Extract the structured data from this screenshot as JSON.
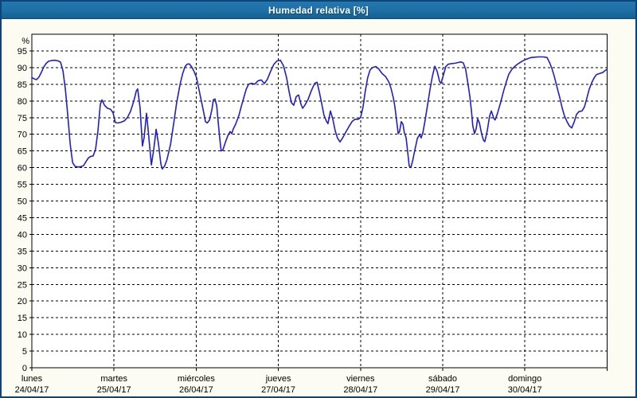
{
  "window": {
    "title": "Humedad relativa [%]"
  },
  "colors": {
    "titlebar_bg": "#1d6fa5",
    "titlebar_text": "#ffffff",
    "outer_border": "#0d4577",
    "window_bg": "#fcfcf2",
    "plot_bg": "#ffffff",
    "grid": "#000000",
    "axis": "#000000",
    "label_text": "#000000",
    "line": "#2020c8"
  },
  "chart_data": {
    "type": "line",
    "title": "Humedad relativa [%]",
    "xlabel": "",
    "ylabel": "",
    "y_unit_label": "%",
    "ylim": [
      0,
      100
    ],
    "y_ticks": [
      0,
      5,
      10,
      15,
      20,
      25,
      30,
      35,
      40,
      45,
      50,
      55,
      60,
      65,
      70,
      75,
      80,
      85,
      90,
      95
    ],
    "grid": "dashed",
    "legend_position": "none",
    "hours_per_day": 24,
    "x_range_hours": [
      0,
      168
    ],
    "x_days": [
      {
        "name": "lunes",
        "date": "24/04/17"
      },
      {
        "name": "martes",
        "date": "25/04/17"
      },
      {
        "name": "miércoles",
        "date": "26/04/17"
      },
      {
        "name": "jueves",
        "date": "27/04/17"
      },
      {
        "name": "viernes",
        "date": "28/04/17"
      },
      {
        "name": "sábado",
        "date": "29/04/17"
      },
      {
        "name": "domingo",
        "date": "30/04/17"
      }
    ],
    "series": [
      {
        "name": "Humedad relativa",
        "color": "#2020c8",
        "points": [
          [
            0,
            87
          ],
          [
            0.7,
            86.6
          ],
          [
            1.4,
            86.4
          ],
          [
            2.1,
            87.2
          ],
          [
            2.8,
            88.6
          ],
          [
            3.5,
            90.2
          ],
          [
            4.2,
            91.3
          ],
          [
            4.9,
            91.9
          ],
          [
            5.8,
            92.1
          ],
          [
            6.7,
            92.2
          ],
          [
            7.7,
            92
          ],
          [
            8.4,
            91.6
          ],
          [
            9.1,
            89
          ],
          [
            9.8,
            83.5
          ],
          [
            10.5,
            75.5
          ],
          [
            11.2,
            67
          ],
          [
            11.9,
            61.5
          ],
          [
            12.6,
            60.4
          ],
          [
            13.5,
            60.2
          ],
          [
            14.4,
            60.3
          ],
          [
            15.1,
            60.6
          ],
          [
            15.8,
            61.8
          ],
          [
            16.5,
            62.9
          ],
          [
            17.2,
            63.4
          ],
          [
            17.9,
            63.5
          ],
          [
            18.6,
            65.5
          ],
          [
            19.3,
            71
          ],
          [
            20,
            79
          ],
          [
            20.5,
            80.3
          ],
          [
            21.2,
            78.7
          ],
          [
            22.1,
            77.8
          ],
          [
            23,
            77.5
          ],
          [
            23.7,
            76.5
          ],
          [
            24.4,
            73.5
          ],
          [
            25.1,
            73.4
          ],
          [
            26,
            73.6
          ],
          [
            27,
            74
          ],
          [
            27.9,
            75
          ],
          [
            28.8,
            76.8
          ],
          [
            29.8,
            80
          ],
          [
            30.5,
            83
          ],
          [
            30.9,
            83.6
          ],
          [
            31.6,
            78
          ],
          [
            32.3,
            66.5
          ],
          [
            32.8,
            69
          ],
          [
            33.5,
            76.3
          ],
          [
            34,
            71
          ],
          [
            34.9,
            60.8
          ],
          [
            35.6,
            65.5
          ],
          [
            36.3,
            71.5
          ],
          [
            37,
            67
          ],
          [
            37.7,
            61
          ],
          [
            38.1,
            59.6
          ],
          [
            38.8,
            60.5
          ],
          [
            39.5,
            62.5
          ],
          [
            40.5,
            67
          ],
          [
            41.4,
            73
          ],
          [
            42.3,
            79.5
          ],
          [
            43.3,
            85
          ],
          [
            44,
            88
          ],
          [
            44.7,
            90.2
          ],
          [
            45.3,
            91
          ],
          [
            46,
            91.1
          ],
          [
            46.7,
            90.2
          ],
          [
            47.4,
            88.8
          ],
          [
            48.1,
            87
          ],
          [
            49.3,
            81
          ],
          [
            50.2,
            76.5
          ],
          [
            50.7,
            73.8
          ],
          [
            51.2,
            73.4
          ],
          [
            51.9,
            74.3
          ],
          [
            52.6,
            77.5
          ],
          [
            53,
            80.3
          ],
          [
            53.5,
            80.6
          ],
          [
            54,
            78.5
          ],
          [
            54.4,
            74
          ],
          [
            54.9,
            68.5
          ],
          [
            55.3,
            65
          ],
          [
            55.8,
            65.3
          ],
          [
            56.5,
            67.5
          ],
          [
            57.2,
            69.5
          ],
          [
            57.9,
            70.8
          ],
          [
            58.4,
            70.2
          ],
          [
            58.8,
            71.5
          ],
          [
            59.5,
            73
          ],
          [
            60.5,
            75.7
          ],
          [
            61.2,
            78.5
          ],
          [
            61.9,
            81
          ],
          [
            62.6,
            83.5
          ],
          [
            63.3,
            85
          ],
          [
            64.2,
            85.3
          ],
          [
            65.1,
            85
          ],
          [
            66,
            86
          ],
          [
            67,
            86.3
          ],
          [
            67.9,
            85.2
          ],
          [
            68.8,
            86.5
          ],
          [
            69.8,
            89
          ],
          [
            70.7,
            91
          ],
          [
            71.6,
            92
          ],
          [
            72.6,
            92.2
          ],
          [
            73.5,
            90.5
          ],
          [
            74.4,
            87
          ],
          [
            75.1,
            83
          ],
          [
            75.8,
            79.5
          ],
          [
            76.5,
            78.7
          ],
          [
            77.2,
            81.3
          ],
          [
            77.9,
            81.8
          ],
          [
            78.6,
            79
          ],
          [
            79.1,
            77.8
          ],
          [
            79.8,
            78.8
          ],
          [
            80.7,
            80.5
          ],
          [
            81.6,
            83
          ],
          [
            82.6,
            85.3
          ],
          [
            83.3,
            85.6
          ],
          [
            84,
            82.5
          ],
          [
            84.7,
            79
          ],
          [
            85.3,
            75.8
          ],
          [
            86,
            74
          ],
          [
            86.5,
            73.2
          ],
          [
            87.2,
            77
          ],
          [
            87.9,
            74.5
          ],
          [
            88.6,
            71
          ],
          [
            89.3,
            68.8
          ],
          [
            90,
            67.7
          ],
          [
            90.7,
            68.8
          ],
          [
            91.6,
            70.5
          ],
          [
            92.6,
            72.3
          ],
          [
            93.5,
            73.8
          ],
          [
            94.4,
            74.5
          ],
          [
            95.3,
            74.5
          ],
          [
            96,
            75
          ],
          [
            96.7,
            78
          ],
          [
            97.4,
            83
          ],
          [
            98.1,
            87
          ],
          [
            98.8,
            89.3
          ],
          [
            99.5,
            90
          ],
          [
            100.5,
            90.3
          ],
          [
            101.4,
            89.5
          ],
          [
            102.3,
            88.2
          ],
          [
            103.3,
            87.3
          ],
          [
            104.2,
            85.8
          ],
          [
            104.9,
            83.8
          ],
          [
            105.6,
            80.8
          ],
          [
            106,
            78.5
          ],
          [
            106.5,
            74.5
          ],
          [
            107,
            70.2
          ],
          [
            107.4,
            70.8
          ],
          [
            107.9,
            73.8
          ],
          [
            108.4,
            73
          ],
          [
            108.8,
            70.5
          ],
          [
            109.3,
            69
          ],
          [
            109.8,
            64.5
          ],
          [
            110.2,
            60.5
          ],
          [
            110.7,
            60
          ],
          [
            111.2,
            62
          ],
          [
            111.9,
            65.5
          ],
          [
            112.6,
            68.8
          ],
          [
            113.3,
            69.9
          ],
          [
            113.7,
            68.9
          ],
          [
            114.2,
            70.5
          ],
          [
            114.9,
            74.5
          ],
          [
            115.6,
            79
          ],
          [
            116.3,
            83.5
          ],
          [
            117,
            87.5
          ],
          [
            117.7,
            90.4
          ],
          [
            118.4,
            88.8
          ],
          [
            119.1,
            85.8
          ],
          [
            119.5,
            85.3
          ],
          [
            120.2,
            87.8
          ],
          [
            120.9,
            90.3
          ],
          [
            121.6,
            91
          ],
          [
            122.6,
            91.2
          ],
          [
            123.5,
            91.3
          ],
          [
            124.4,
            91.5
          ],
          [
            125.3,
            91.7
          ],
          [
            126,
            91.4
          ],
          [
            126.7,
            89.5
          ],
          [
            127.4,
            85
          ],
          [
            127.9,
            81.5
          ],
          [
            128.4,
            77
          ],
          [
            128.8,
            72.5
          ],
          [
            129.3,
            70.2
          ],
          [
            129.8,
            71.8
          ],
          [
            130.2,
            74.6
          ],
          [
            130.7,
            73.5
          ],
          [
            131.4,
            70
          ],
          [
            131.9,
            68.2
          ],
          [
            132.3,
            67.8
          ],
          [
            133,
            71
          ],
          [
            133.7,
            75.5
          ],
          [
            134.2,
            77
          ],
          [
            134.9,
            74.8
          ],
          [
            135.3,
            74.3
          ],
          [
            136,
            76.3
          ],
          [
            136.9,
            79.5
          ],
          [
            137.8,
            83
          ],
          [
            138.6,
            85.8
          ],
          [
            139.3,
            88
          ],
          [
            140.2,
            89.5
          ],
          [
            141.2,
            90.5
          ],
          [
            142.1,
            91.2
          ],
          [
            143,
            91.8
          ],
          [
            143.9,
            92.3
          ],
          [
            144.9,
            92.7
          ],
          [
            145.8,
            93
          ],
          [
            146.7,
            93.1
          ],
          [
            147.7,
            93.2
          ],
          [
            148.6,
            93.2
          ],
          [
            149.5,
            93.2
          ],
          [
            150.5,
            93
          ],
          [
            151.2,
            91.5
          ],
          [
            151.9,
            89.7
          ],
          [
            152.6,
            87.3
          ],
          [
            153.5,
            83.7
          ],
          [
            154.2,
            80.9
          ],
          [
            154.9,
            77.8
          ],
          [
            155.6,
            75.4
          ],
          [
            156.3,
            73.8
          ],
          [
            157,
            72.5
          ],
          [
            157.7,
            71.9
          ],
          [
            158.4,
            73.7
          ],
          [
            159.1,
            76
          ],
          [
            159.8,
            76.8
          ],
          [
            160.7,
            77
          ],
          [
            161.4,
            78.2
          ],
          [
            162.1,
            80.8
          ],
          [
            162.8,
            83.5
          ],
          [
            163.5,
            85.4
          ],
          [
            164.2,
            86.9
          ],
          [
            164.9,
            87.9
          ],
          [
            165.8,
            88.2
          ],
          [
            166.7,
            88.5
          ],
          [
            167.4,
            89.1
          ],
          [
            167.9,
            89.4
          ]
        ]
      }
    ]
  }
}
